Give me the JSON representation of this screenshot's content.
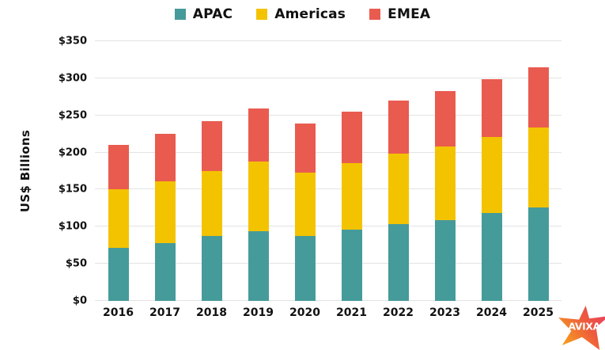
{
  "chart_data": {
    "type": "bar",
    "stacked": true,
    "title": "",
    "categories": [
      "2016",
      "2017",
      "2018",
      "2019",
      "2020",
      "2021",
      "2022",
      "2023",
      "2024",
      "2025"
    ],
    "series": [
      {
        "name": "APAC",
        "color": "#459b9a",
        "values": [
          71,
          78,
          87,
          94,
          88,
          96,
          103,
          109,
          118,
          126
        ]
      },
      {
        "name": "Americas",
        "color": "#f3c300",
        "values": [
          79,
          83,
          88,
          94,
          85,
          90,
          96,
          99,
          103,
          108
        ]
      },
      {
        "name": "EMEA",
        "color": "#e95b4f",
        "values": [
          60,
          64,
          67,
          71,
          66,
          69,
          71,
          75,
          78,
          81
        ]
      }
    ],
    "xlabel": "",
    "ylabel": "US$ Billions",
    "ylim": [
      0,
      350
    ],
    "ytick_step": 50,
    "ytick_labels": [
      "$0",
      "$50",
      "$100",
      "$150",
      "$200",
      "$250",
      "$300",
      "$350"
    ],
    "grid": true,
    "legend_position": "top-center"
  },
  "logo": {
    "text": "AVIXA",
    "gradient_start": "#f7a21e",
    "gradient_mid": "#ee5a3c",
    "gradient_end": "#e83f63"
  }
}
